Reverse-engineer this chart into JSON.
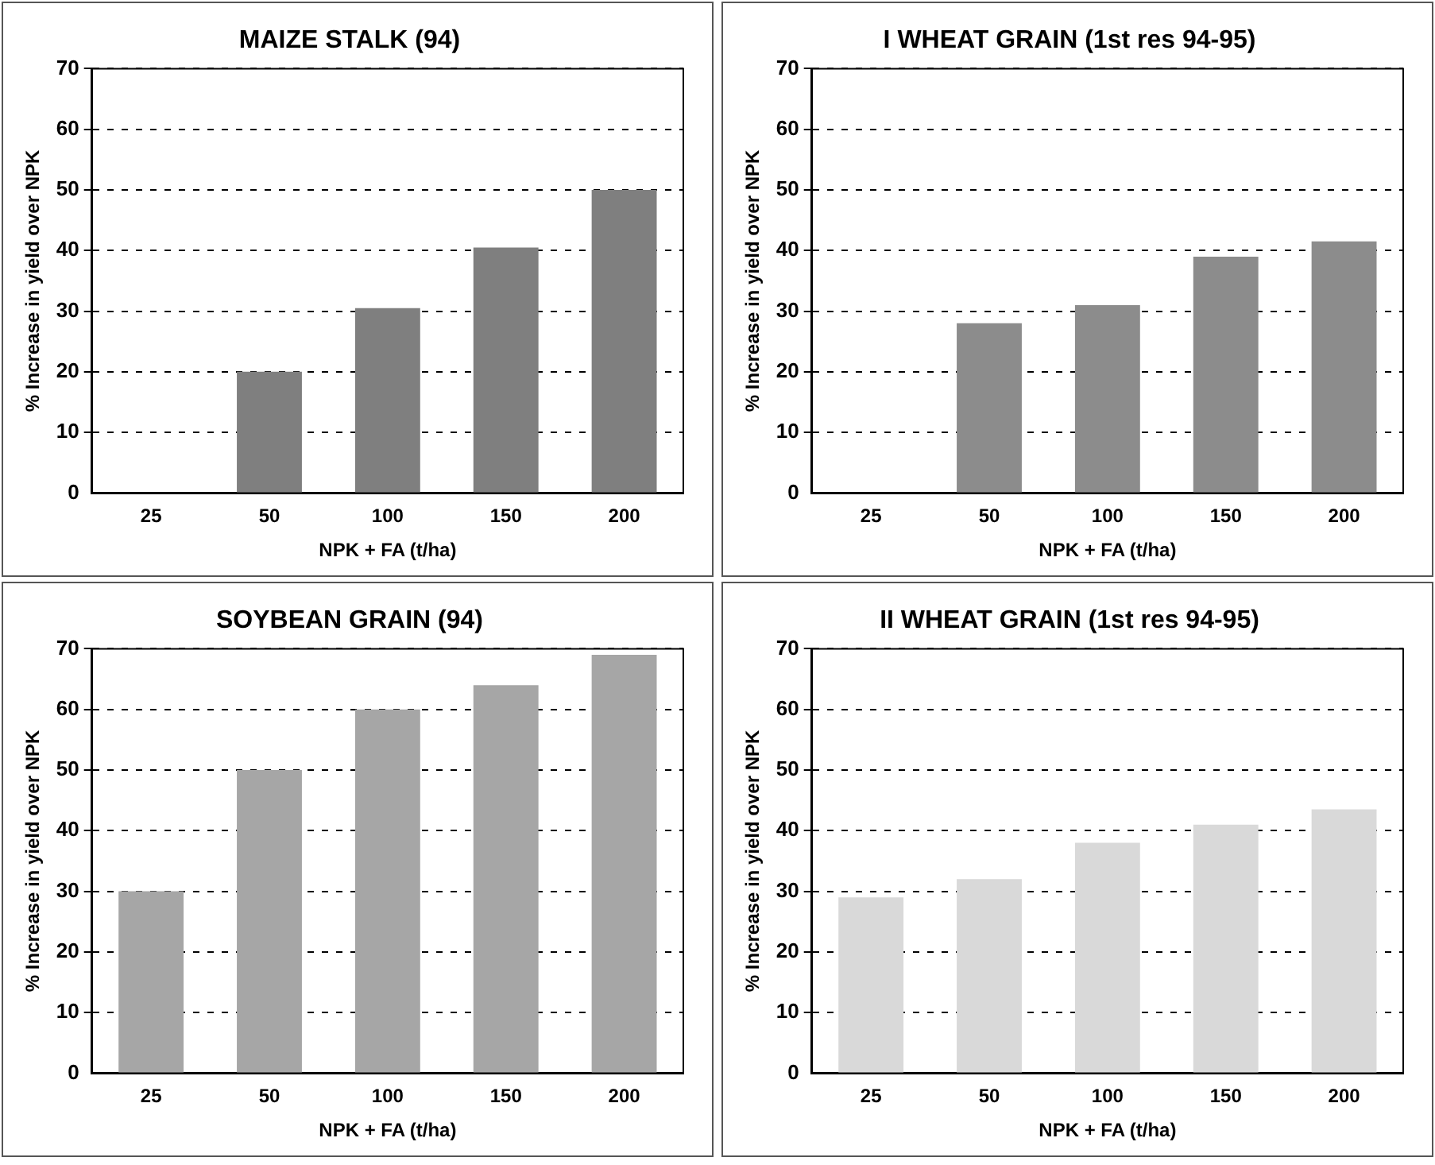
{
  "chart_data": [
    {
      "type": "bar",
      "title": "MAIZE STALK (94)",
      "xlabel": "NPK + FA (t/ha)",
      "ylabel": "% Increase in yield over NPK",
      "categories": [
        "25",
        "50",
        "100",
        "150",
        "200"
      ],
      "values": [
        0,
        20,
        30.5,
        40.5,
        50
      ],
      "color": "#7f7f7f",
      "ylim": [
        0,
        70
      ],
      "yticks": [
        0,
        10,
        20,
        30,
        40,
        50,
        60,
        70
      ],
      "grid": "y"
    },
    {
      "type": "bar",
      "title": "I WHEAT GRAIN (1st res 94-95)",
      "xlabel": "NPK + FA (t/ha)",
      "ylabel": "% Increase in yield over NPK",
      "categories": [
        "25",
        "50",
        "100",
        "150",
        "200"
      ],
      "values": [
        0,
        28,
        31,
        39,
        41.5
      ],
      "color": "#8c8c8c",
      "ylim": [
        0,
        70
      ],
      "yticks": [
        0,
        10,
        20,
        30,
        40,
        50,
        60,
        70
      ],
      "grid": "y"
    },
    {
      "type": "bar",
      "title": "SOYBEAN GRAIN (94)",
      "xlabel": "NPK + FA (t/ha)",
      "ylabel": "% Increase in yield over NPK",
      "categories": [
        "25",
        "50",
        "100",
        "150",
        "200"
      ],
      "values": [
        30,
        50,
        60,
        64,
        69
      ],
      "color": "#a6a6a6",
      "ylim": [
        0,
        70
      ],
      "yticks": [
        0,
        10,
        20,
        30,
        40,
        50,
        60,
        70
      ],
      "grid": "y"
    },
    {
      "type": "bar",
      "title": "II WHEAT GRAIN (1st res 94-95)",
      "xlabel": "NPK + FA (t/ha)",
      "ylabel": "% Increase in yield over NPK",
      "categories": [
        "25",
        "50",
        "100",
        "150",
        "200"
      ],
      "values": [
        29,
        32,
        38,
        41,
        43.5
      ],
      "color": "#d9d9d9",
      "ylim": [
        0,
        70
      ],
      "yticks": [
        0,
        10,
        20,
        30,
        40,
        50,
        60,
        70
      ],
      "grid": "y"
    }
  ]
}
